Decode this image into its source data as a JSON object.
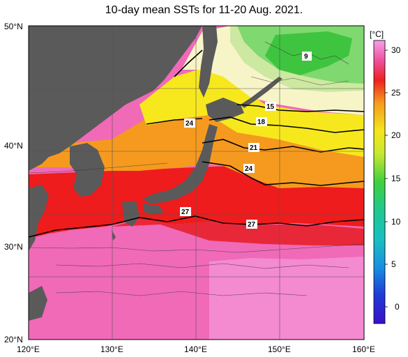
{
  "title": "10-day mean SSTs for 11-20 Aug. 2021.",
  "lat_labels": [
    "50°N",
    "40°N",
    "30°N",
    "20°N"
  ],
  "lon_labels": [
    "120°E",
    "130°E",
    "140°E",
    "150°E",
    "160°E"
  ],
  "colorbar": {
    "unit": "[°C]",
    "ticks": [
      "30",
      "25",
      "20",
      "15",
      "10",
      "5",
      "0"
    ]
  },
  "contour_labels": [
    "9",
    "15",
    "18",
    "21",
    "24",
    "24",
    "27",
    "27"
  ],
  "colors": {
    "land": "#5a5a5a",
    "ocean_warm": "#f06ab8",
    "red": "#ee1c1c",
    "orange": "#f59a1e",
    "yellow": "#f7e81e",
    "pale": "#f7f5c8",
    "green": "#4ad14a"
  }
}
